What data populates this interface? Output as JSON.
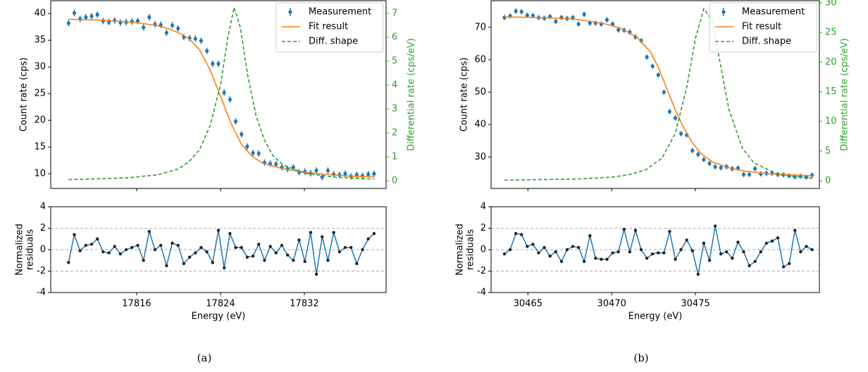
{
  "chart_data": [
    {
      "type": "scatter",
      "label": "(a)",
      "xlabel": "Energy (eV)",
      "ylabel": "Count rate (cps)",
      "y2label": "Differential rate (cps/eV)",
      "legend": "upper right",
      "xlim": [
        17807.8,
        17839.8
      ],
      "xticks": [
        17816,
        17824,
        17832
      ],
      "ylim": [
        7.25,
        42.4
      ],
      "yticks": [
        10,
        15,
        20,
        25,
        30,
        35,
        40
      ],
      "y2lim": [
        -0.32,
        7.53
      ],
      "y2ticks": [
        0,
        1,
        2,
        3,
        4,
        5,
        6,
        7
      ],
      "y2color": "#2ca02c",
      "x": [
        17809.5,
        17810.05,
        17810.6,
        17811.15,
        17811.7,
        17812.25,
        17812.8,
        17813.35,
        17813.9,
        17814.45,
        17815,
        17815.55,
        17816.1,
        17816.65,
        17817.2,
        17817.75,
        17818.3,
        17818.85,
        17819.4,
        17819.95,
        17820.5,
        17821.05,
        17821.6,
        17822.15,
        17822.7,
        17823.25,
        17823.8,
        17824.35,
        17824.9,
        17825.45,
        17826,
        17826.55,
        17827.1,
        17827.65,
        17828.2,
        17828.75,
        17829.3,
        17829.85,
        17830.4,
        17830.95,
        17831.5,
        17832.05,
        17832.6,
        17833.15,
        17833.7,
        17834.25,
        17834.8,
        17835.35,
        17835.9,
        17836.45,
        17837,
        17837.55,
        17838.1,
        17838.65
      ],
      "series": [
        {
          "name": "Measurement",
          "color": "#1f77b4",
          "error": 0.6,
          "values": [
            38.2,
            40.1,
            39.0,
            39.3,
            39.5,
            39.8,
            38.6,
            38.4,
            38.7,
            38.3,
            38.4,
            38.5,
            38.6,
            37.4,
            39.3,
            38.0,
            37.9,
            36.4,
            37.8,
            37.2,
            35.6,
            35.4,
            35.3,
            34.9,
            33.0,
            30.6,
            30.6,
            25.2,
            23.9,
            19.8,
            17.4,
            15.1,
            13.9,
            13.8,
            12.1,
            11.9,
            11.8,
            11.2,
            10.9,
            11.2,
            10.3,
            10.4,
            10.1,
            10.6,
            9.4,
            10.6,
            9.9,
            9.8,
            10.0,
            9.5,
            9.8,
            9.6,
            9.9,
            10.0
          ]
        },
        {
          "name": "Fit result",
          "color": "#ff7f0e",
          "x": [
            17809.5,
            17812,
            17814,
            17816,
            17818,
            17819,
            17820,
            17821,
            17822,
            17823,
            17824,
            17825,
            17826,
            17827,
            17828,
            17830,
            17832,
            17834,
            17836,
            17838.65
          ],
          "values": [
            38.9,
            38.8,
            38.6,
            38.3,
            37.7,
            37.2,
            36.4,
            35.3,
            33.2,
            29.5,
            24.5,
            19.5,
            15.5,
            13.3,
            12.0,
            10.9,
            10.3,
            9.9,
            9.6,
            9.4
          ]
        },
        {
          "name": "Diff. shape",
          "color": "#2ca02c",
          "axis": "y2",
          "dash": true,
          "x": [
            17809.5,
            17812,
            17815,
            17818,
            17820,
            17821,
            17822,
            17823,
            17824,
            17824.7,
            17825.3,
            17825.9,
            17826.6,
            17827.4,
            17828.2,
            17829,
            17830,
            17832,
            17835,
            17838.65
          ],
          "values": [
            0.05,
            0.08,
            0.12,
            0.25,
            0.5,
            0.8,
            1.3,
            2.3,
            4.0,
            6.0,
            7.25,
            6.4,
            4.4,
            2.7,
            1.7,
            1.05,
            0.65,
            0.32,
            0.15,
            0.07
          ]
        }
      ],
      "residuals": {
        "ylabel": [
          "Normalized",
          "residuals"
        ],
        "ylim": [
          -4,
          4
        ],
        "yticks": [
          -4,
          -2,
          0,
          2,
          4
        ],
        "hlines": [
          -2,
          0,
          2
        ],
        "color": "#1f77b4",
        "values": [
          -1.2,
          1.4,
          -0.1,
          0.4,
          0.5,
          1.0,
          -0.2,
          -0.3,
          0.3,
          -0.4,
          0.0,
          0.2,
          0.4,
          -1.0,
          1.7,
          0.0,
          0.4,
          -1.5,
          0.6,
          0.4,
          -1.3,
          -0.7,
          -0.3,
          0.2,
          -0.2,
          -1.2,
          1.8,
          -1.7,
          1.5,
          0.2,
          0.2,
          -0.7,
          -0.6,
          0.5,
          -1.0,
          0.3,
          -0.3,
          0.4,
          -0.5,
          -1.0,
          0.9,
          -1.1,
          1.6,
          -2.3,
          1.2,
          -1.0,
          1.6,
          -0.2,
          0.2,
          0.2,
          -1.3,
          0.0,
          1.0,
          1.5
        ]
      }
    },
    {
      "type": "scatter",
      "label": "(b)",
      "xlabel": "Energy (eV)",
      "ylabel": "Count rate (cps)",
      "y2label": "Differential rate (cps/eV)",
      "legend": "upper right",
      "xlim": [
        30462.8,
        30482.4
      ],
      "xticks": [
        30465,
        30470,
        30475
      ],
      "ylim": [
        20.3,
        78.2
      ],
      "yticks": [
        30,
        40,
        50,
        60,
        70
      ],
      "y2lim": [
        -1.3,
        30.35
      ],
      "y2ticks": [
        0,
        5,
        10,
        15,
        20,
        25,
        30
      ],
      "y2color": "#2ca02c",
      "x": [
        30463.6,
        30463.94,
        30464.28,
        30464.62,
        30464.96,
        30465.3,
        30465.64,
        30465.98,
        30466.32,
        30466.66,
        30467,
        30467.34,
        30467.68,
        30468.02,
        30468.36,
        30468.7,
        30469.04,
        30469.38,
        30469.72,
        30470.06,
        30470.4,
        30470.74,
        30471.08,
        30471.42,
        30471.76,
        30472.1,
        30472.44,
        30472.78,
        30473.12,
        30473.46,
        30473.8,
        30474.14,
        30474.48,
        30474.82,
        30475.16,
        30475.5,
        30475.84,
        30476.18,
        30476.52,
        30476.86,
        30477.2,
        30477.54,
        30477.88,
        30478.22,
        30478.56,
        30478.9,
        30479.24,
        30479.58,
        30479.92,
        30480.26,
        30480.6,
        30480.94,
        30481.28,
        30481.62,
        30481.96
      ],
      "series": [
        {
          "name": "Measurement",
          "color": "#1f77b4",
          "error": 0.8,
          "values": [
            73.0,
            73.5,
            75.0,
            74.8,
            73.7,
            73.6,
            73.0,
            72.8,
            73.3,
            71.8,
            73.0,
            72.7,
            73.0,
            71.0,
            74.0,
            71.3,
            71.3,
            71.0,
            72.3,
            71.0,
            69.2,
            69.1,
            68.5,
            67.0,
            65.9,
            60.8,
            58.0,
            55.3,
            50.0,
            44.0,
            42.0,
            37.2,
            36.8,
            32.0,
            30.8,
            29.2,
            28.0,
            27.0,
            26.7,
            27.0,
            26.4,
            26.6,
            24.6,
            24.6,
            26.4,
            24.8,
            25.0,
            25.0,
            24.6,
            24.5,
            24.2,
            23.9,
            24.1,
            23.8,
            24.4
          ]
        },
        {
          "name": "Fit result",
          "color": "#ff7f0e",
          "x": [
            30463.6,
            30466,
            30468,
            30469.5,
            30470.5,
            30471.5,
            30472.3,
            30472.8,
            30473.3,
            30473.8,
            30474.3,
            30474.8,
            30475.3,
            30476,
            30477,
            30478,
            30479.5,
            30482
          ],
          "values": [
            73.2,
            73.0,
            72.4,
            71.2,
            69.8,
            67.0,
            62.5,
            57.5,
            51.0,
            44.5,
            39.0,
            34.5,
            31.2,
            28.5,
            26.7,
            25.6,
            24.8,
            24.2
          ]
        },
        {
          "name": "Diff. shape",
          "color": "#2ca02c",
          "axis": "y2",
          "dash": true,
          "x": [
            30463.6,
            30466,
            30468,
            30470,
            30471,
            30472,
            30473,
            30473.8,
            30474.5,
            30475,
            30475.5,
            30476,
            30476.5,
            30477,
            30477.8,
            30478.5,
            30480,
            30482
          ],
          "values": [
            0.1,
            0.2,
            0.3,
            0.6,
            1.0,
            1.8,
            3.8,
            8.0,
            16.0,
            24.0,
            29.0,
            27.0,
            19.5,
            12.0,
            5.5,
            3.0,
            1.0,
            0.4
          ]
        }
      ],
      "residuals": {
        "ylabel": [
          "Normalized",
          "residuals"
        ],
        "ylim": [
          -4,
          4
        ],
        "yticks": [
          -4,
          -2,
          0,
          2,
          4
        ],
        "hlines": [
          -2,
          0,
          2
        ],
        "color": "#1f77b4",
        "values": [
          -0.4,
          0.0,
          1.5,
          1.4,
          0.3,
          0.5,
          -0.3,
          0.2,
          -0.6,
          -0.2,
          -1.1,
          0.0,
          0.3,
          0.2,
          -1.1,
          1.3,
          -0.8,
          -0.9,
          -0.9,
          -0.3,
          -0.2,
          1.9,
          -0.2,
          1.8,
          0.0,
          -0.8,
          -0.4,
          -0.3,
          -0.3,
          1.7,
          -0.9,
          0.0,
          0.9,
          -0.1,
          -2.3,
          0.6,
          -1.0,
          2.2,
          -0.4,
          -0.2,
          -0.8,
          0.7,
          -0.2,
          -1.5,
          -1.1,
          -0.2,
          0.6,
          0.8,
          1.1,
          -1.6,
          -1.3,
          1.8,
          -0.2,
          0.3,
          0.0
        ]
      }
    }
  ]
}
